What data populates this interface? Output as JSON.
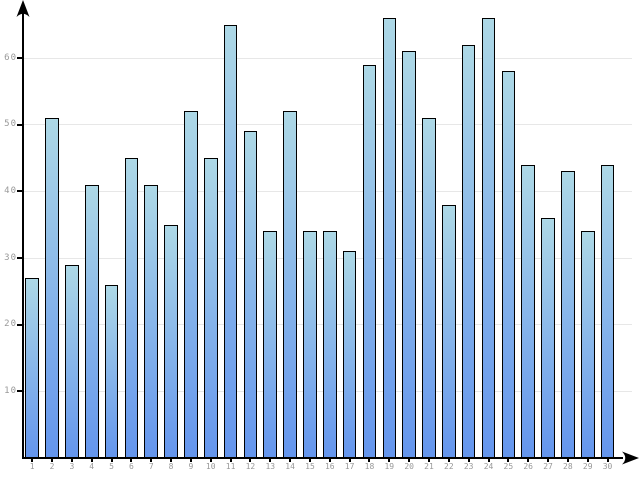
{
  "chart_data": {
    "type": "bar",
    "title": "",
    "xlabel": "",
    "ylabel": "",
    "categories": [
      "1",
      "2",
      "3",
      "4",
      "5",
      "6",
      "7",
      "8",
      "9",
      "10",
      "11",
      "12",
      "13",
      "14",
      "15",
      "16",
      "17",
      "18",
      "19",
      "20",
      "21",
      "22",
      "23",
      "24",
      "25",
      "26",
      "27",
      "28",
      "29",
      "30"
    ],
    "values": [
      27,
      51,
      29,
      41,
      26,
      45,
      41,
      35,
      52,
      45,
      65,
      49,
      34,
      52,
      34,
      34,
      31,
      59,
      66,
      61,
      51,
      38,
      62,
      66,
      58,
      44,
      36,
      43,
      34,
      44
    ],
    "yticks": [
      10,
      20,
      30,
      40,
      50,
      60
    ],
    "ylim": [
      0,
      67.5
    ],
    "grid": true,
    "legend": null,
    "bar_gradient_top_color": "#ADD8E6",
    "bar_gradient_bottom_color": "#6495ED",
    "bar_border_color": "#000000",
    "gridline_color": "#e7e7e7",
    "tick_label_color": "#999999",
    "axis_color": "#000000"
  }
}
